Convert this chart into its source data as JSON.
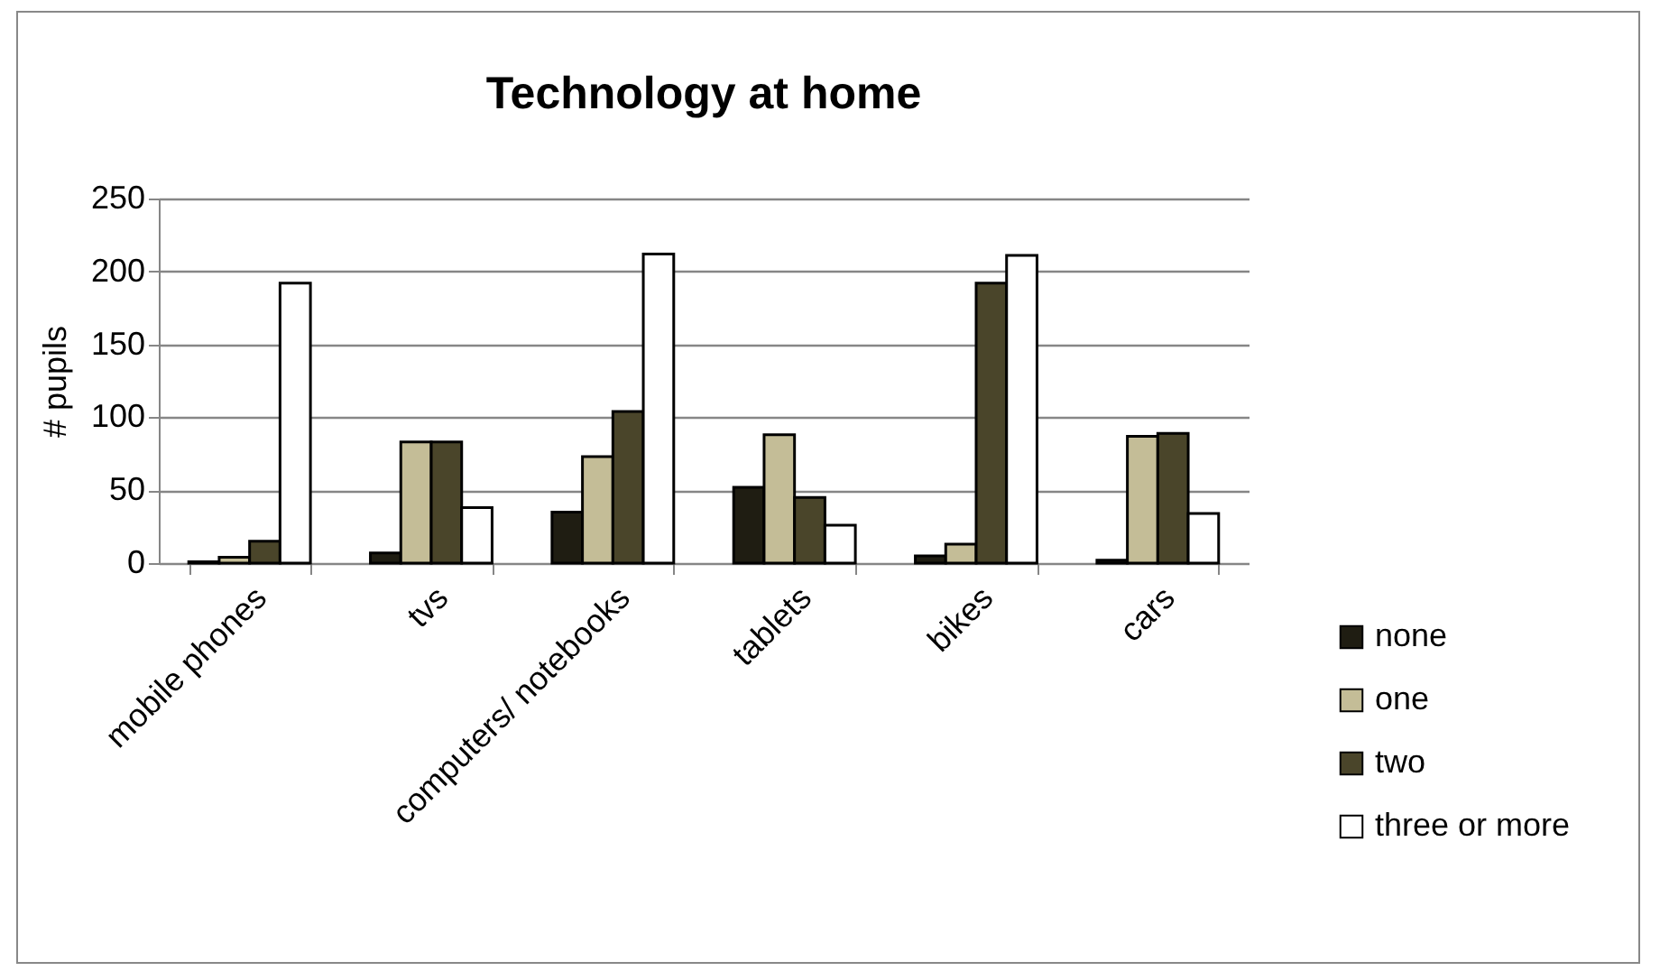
{
  "chart_data": {
    "type": "bar",
    "title": "Technology at home",
    "ylabel": "# pupils",
    "categories": [
      "mobile phones",
      "tvs",
      "computers/ notebooks",
      "tablets",
      "bikes",
      "cars"
    ],
    "series": [
      {
        "name": "none",
        "color": "#1f1d12",
        "values": [
          1,
          7,
          35,
          52,
          5,
          2
        ]
      },
      {
        "name": "one",
        "color": "#c4bd97",
        "values": [
          4,
          83,
          73,
          88,
          13,
          87
        ]
      },
      {
        "name": "two",
        "color": "#4a452a",
        "values": [
          15,
          83,
          104,
          45,
          192,
          89
        ]
      },
      {
        "name": "three or more",
        "color": "#ffffff",
        "values": [
          192,
          38,
          212,
          26,
          211,
          34
        ]
      }
    ],
    "ylim": [
      0,
      250
    ],
    "yticks": [
      0,
      50,
      100,
      150,
      200,
      250
    ],
    "grid": "y",
    "legend": "right"
  }
}
